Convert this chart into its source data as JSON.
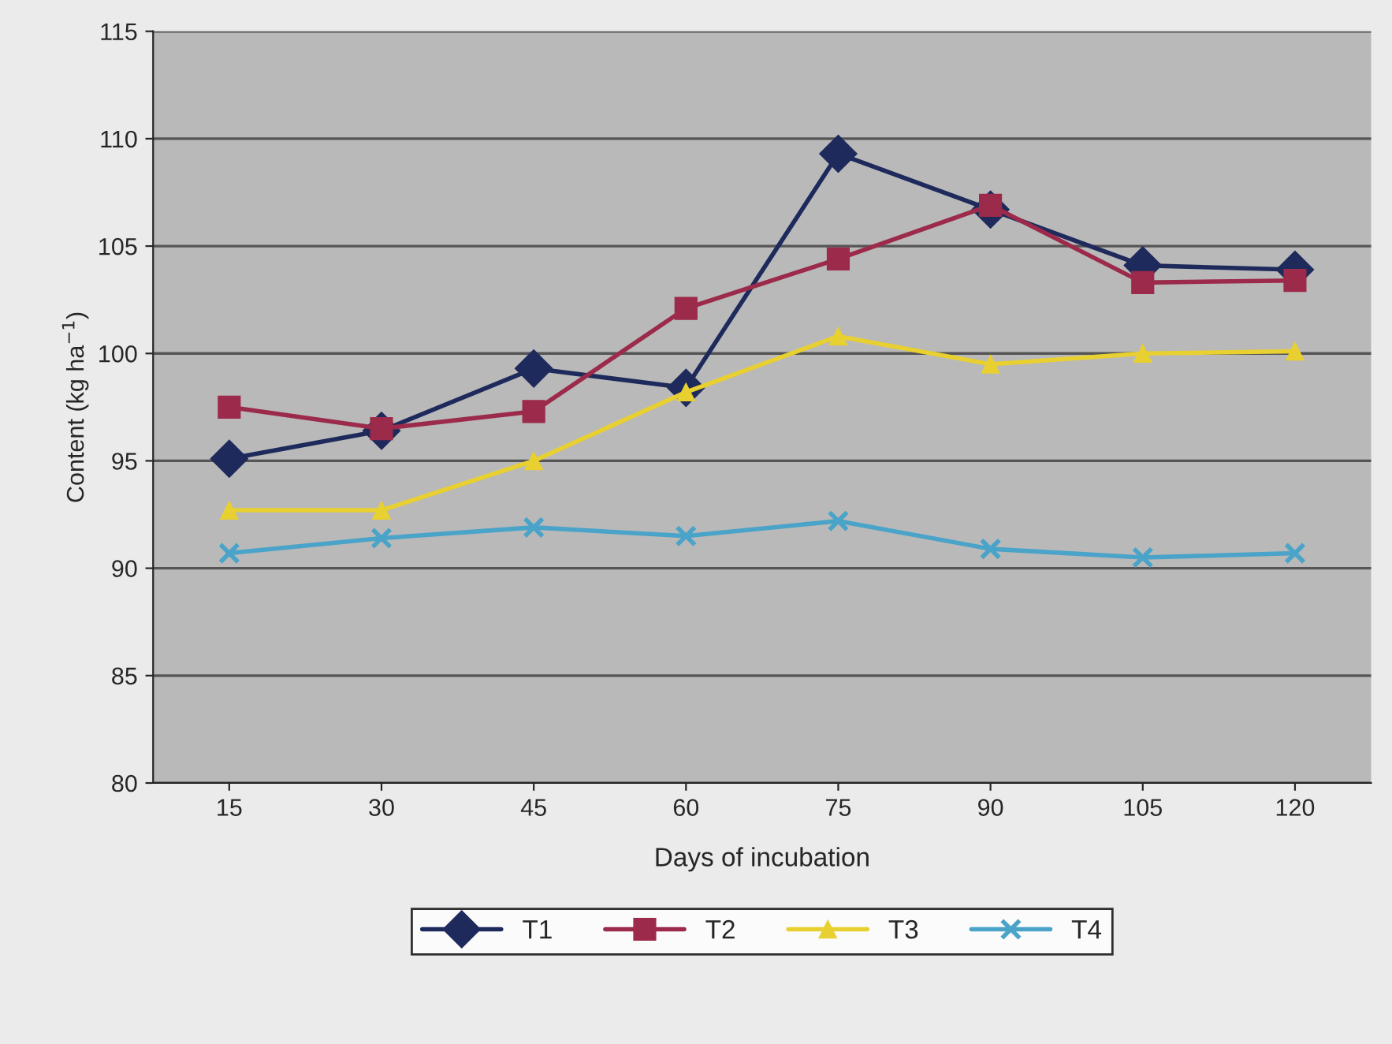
{
  "chart_data": {
    "type": "line",
    "xlabel": "Days of incubation",
    "ylabel": "Content (kg ha$^{−1}$)",
    "categories": [
      "15",
      "30",
      "45",
      "60",
      "75",
      "90",
      "105",
      "120"
    ],
    "series": [
      {
        "name": "T1",
        "color": "#1f2a5c",
        "marker": "diamond",
        "values": [
          95.1,
          96.4,
          99.3,
          98.4,
          109.3,
          106.7,
          104.1,
          103.9
        ]
      },
      {
        "name": "T2",
        "color": "#9c2a4a",
        "marker": "square",
        "values": [
          97.5,
          96.5,
          97.3,
          102.1,
          104.4,
          106.9,
          103.3,
          103.4
        ]
      },
      {
        "name": "T3",
        "color": "#e8d030",
        "marker": "triangle",
        "values": [
          92.7,
          92.7,
          95.0,
          98.2,
          100.8,
          99.5,
          100.0,
          100.1
        ]
      },
      {
        "name": "T4",
        "color": "#4aa3c8",
        "marker": "cross",
        "values": [
          90.7,
          91.4,
          91.9,
          91.5,
          92.2,
          90.9,
          90.5,
          90.7
        ]
      }
    ],
    "ylim": [
      80,
      115
    ],
    "yticks": [
      80,
      85,
      90,
      95,
      100,
      105,
      110,
      115
    ],
    "grid": "y",
    "legend": "bottom",
    "line_style": "solid"
  }
}
